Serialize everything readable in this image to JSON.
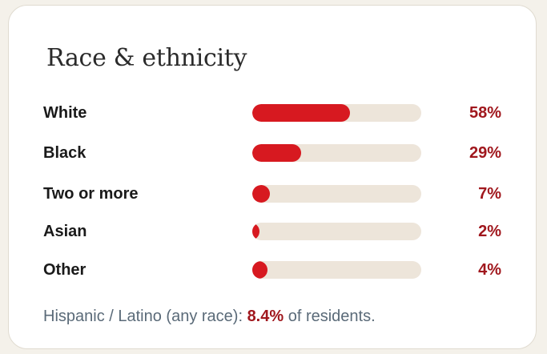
{
  "title": "Race & ethnicity",
  "rows": [
    {
      "label": "White",
      "value": 58,
      "display": "58%"
    },
    {
      "label": "Black",
      "value": 29,
      "display": "29%"
    },
    {
      "label": "Two or more",
      "value": 7,
      "display": "7%"
    },
    {
      "label": "Asian",
      "value": 2,
      "display": "2%"
    },
    {
      "label": "Other",
      "value": 4,
      "display": "4%"
    }
  ],
  "footnote": {
    "prefix": "Hispanic / Latino (any race): ",
    "value": "8.4%",
    "suffix": " of residents."
  },
  "colors": {
    "bar_fill": "#d71920",
    "bar_track": "#ede5da",
    "value_text": "#a0171d",
    "label_text": "#1a1a1a",
    "footnote_text": "#5a6a78"
  }
}
